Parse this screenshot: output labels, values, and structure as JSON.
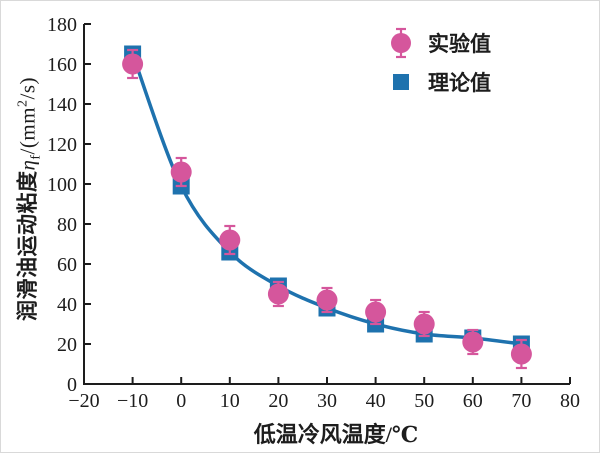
{
  "chart_data": {
    "type": "line",
    "title": "",
    "xlabel": "低温冷风温度/℃",
    "ylabel": "润滑油运动粘度η_f/(mm²/s)",
    "ylabel_parts": {
      "cn": "润滑油运动粘度",
      "symbol": "η",
      "sub": "f",
      "mid": "/(mm",
      "sup": "2",
      "end": "/s)"
    },
    "xlim": [
      -20,
      80
    ],
    "ylim": [
      0,
      180
    ],
    "x_ticks": [
      -20,
      -10,
      0,
      10,
      20,
      30,
      40,
      50,
      60,
      70,
      80
    ],
    "x_tick_labels": [
      "−20",
      "−10",
      "0",
      "10",
      "20",
      "30",
      "40",
      "50",
      "60",
      "70",
      "80"
    ],
    "y_ticks": [
      0,
      20,
      40,
      60,
      80,
      100,
      120,
      140,
      160,
      180
    ],
    "y_tick_labels": [
      "0",
      "20",
      "40",
      "60",
      "80",
      "100",
      "120",
      "140",
      "160",
      "180"
    ],
    "grid": false,
    "legend_position": "top-right",
    "x": [
      -10,
      0,
      10,
      20,
      30,
      40,
      50,
      60,
      70
    ],
    "series": [
      {
        "name": "实验值",
        "marker": "circle",
        "color": "#d5569c",
        "values": [
          160,
          106,
          72,
          45,
          42,
          36,
          30,
          21,
          15
        ],
        "errors": [
          7,
          7,
          7,
          6,
          6,
          6,
          6,
          6,
          7
        ]
      },
      {
        "name": "理论值",
        "marker": "square",
        "color": "#1e72ae",
        "values": [
          165,
          99,
          66,
          49,
          38,
          30,
          25,
          23,
          20
        ],
        "curve": true
      }
    ],
    "axis_color": "#1d1d1d"
  }
}
